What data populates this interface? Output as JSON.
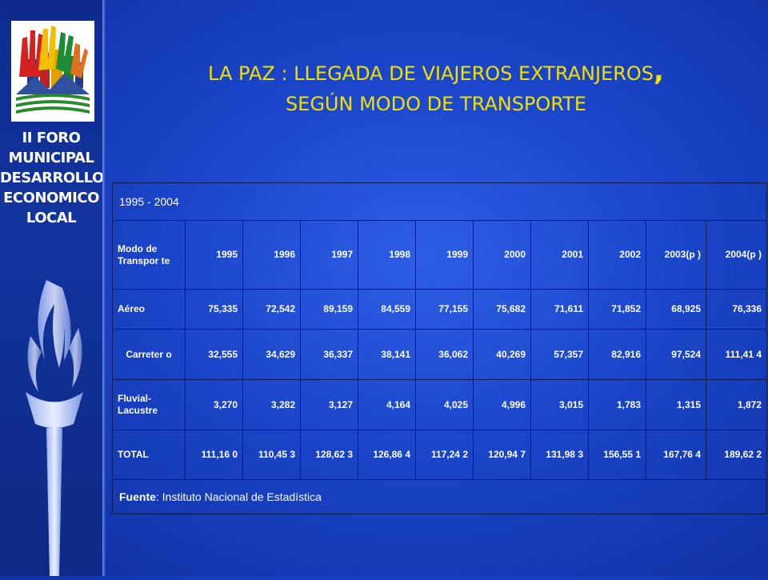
{
  "slide": {
    "title_line1": "LA PAZ : LLEGADA DE VIAJEROS EXTRANJEROS",
    "title_comma": ",",
    "title_line2": "SEGÚN MODO DE TRANSPORTE"
  },
  "sidebar": {
    "logo_icon": "hands-city-logo-icon",
    "forum_lines": [
      "II FORO",
      "MUNICIPAL",
      "DESARROLLO",
      "ECONOMICO",
      "LOCAL"
    ],
    "torch_icon": "torch-icon",
    "colors": {
      "panel": "#12349e",
      "text": "#ffffff"
    }
  },
  "table": {
    "range": "1995 - 2004",
    "header": [
      "Modo de Transpor te",
      "1995",
      "1996",
      "1997",
      "1998",
      "1999",
      "2000",
      "2001",
      "2002",
      "2003(p )",
      "2004(p )"
    ],
    "rows": [
      {
        "mode": "Aéreo",
        "values": [
          "75,335",
          "72,542",
          "89,159",
          "84,559",
          "77,155",
          "75,682",
          "71,611",
          "71,852",
          "68,925",
          "76,336"
        ]
      },
      {
        "mode": "Carreter o",
        "values": [
          "32,555",
          "34,629",
          "36,337",
          "38,141",
          "36,062",
          "40,269",
          "57,357",
          "82,916",
          "97,524",
          "111,41 4"
        ]
      },
      {
        "mode": "Fluvial- Lacustre",
        "values": [
          "3,270",
          "3,282",
          "3,127",
          "4,164",
          "4,025",
          "4,996",
          "3,015",
          "1,783",
          "1,315",
          "1,872"
        ]
      },
      {
        "mode": "TOTAL",
        "values": [
          "111,16 0",
          "110,45 3",
          "128,62 3",
          "126,86 4",
          "117,24 2",
          "120,94 7",
          "131,98 3",
          "156,55 1",
          "167,76 4",
          "189,62 2"
        ]
      }
    ],
    "source_label": "Fuente",
    "source_text": ": Instituto Nacional de Estadística"
  },
  "colors": {
    "title": "#f0e000",
    "background": "#1a44c8",
    "table_text": "#ffffff"
  }
}
